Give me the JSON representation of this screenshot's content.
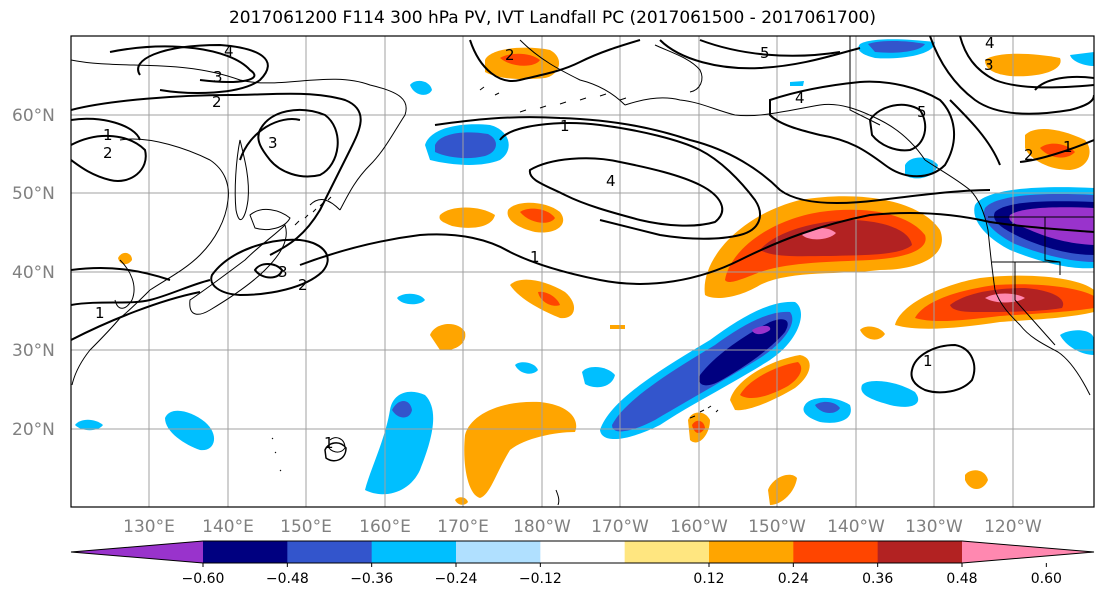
{
  "title": "2017061200 F114 300 hPa PV, IVT Landfall PC (2017061500 - 2017061700)",
  "lon_labels": [
    "130°E",
    "140°E",
    "150°E",
    "160°E",
    "170°E",
    "180°W",
    "170°W",
    "160°W",
    "150°W",
    "140°W",
    "130°W",
    "120°W"
  ],
  "lat_labels": [
    "60°N",
    "50°N",
    "40°N",
    "30°N",
    "20°N"
  ],
  "colorbar": {
    "tick_labels": [
      "−0.60",
      "−0.48",
      "−0.36",
      "−0.24",
      "−0.12",
      "0.12",
      "0.24",
      "0.36",
      "0.48",
      "0.60"
    ],
    "colors": [
      "#9933cc",
      "#000080",
      "#3355cc",
      "#00bfff",
      "#b0e0ff",
      "#ffffff",
      "#ffe680",
      "#ffa500",
      "#ff4500",
      "#b22222",
      "#ff88b0"
    ]
  },
  "contour_labels": [
    "4",
    "3",
    "2",
    "1",
    "2",
    "3",
    "3",
    "2",
    "1",
    "1",
    "4",
    "1",
    "4",
    "5",
    "5",
    "4",
    "3",
    "2",
    "1",
    "2",
    "1",
    "1"
  ],
  "colors": {
    "land_line": "#000000",
    "grid": "#a0a0a0",
    "contour": "#000000"
  }
}
